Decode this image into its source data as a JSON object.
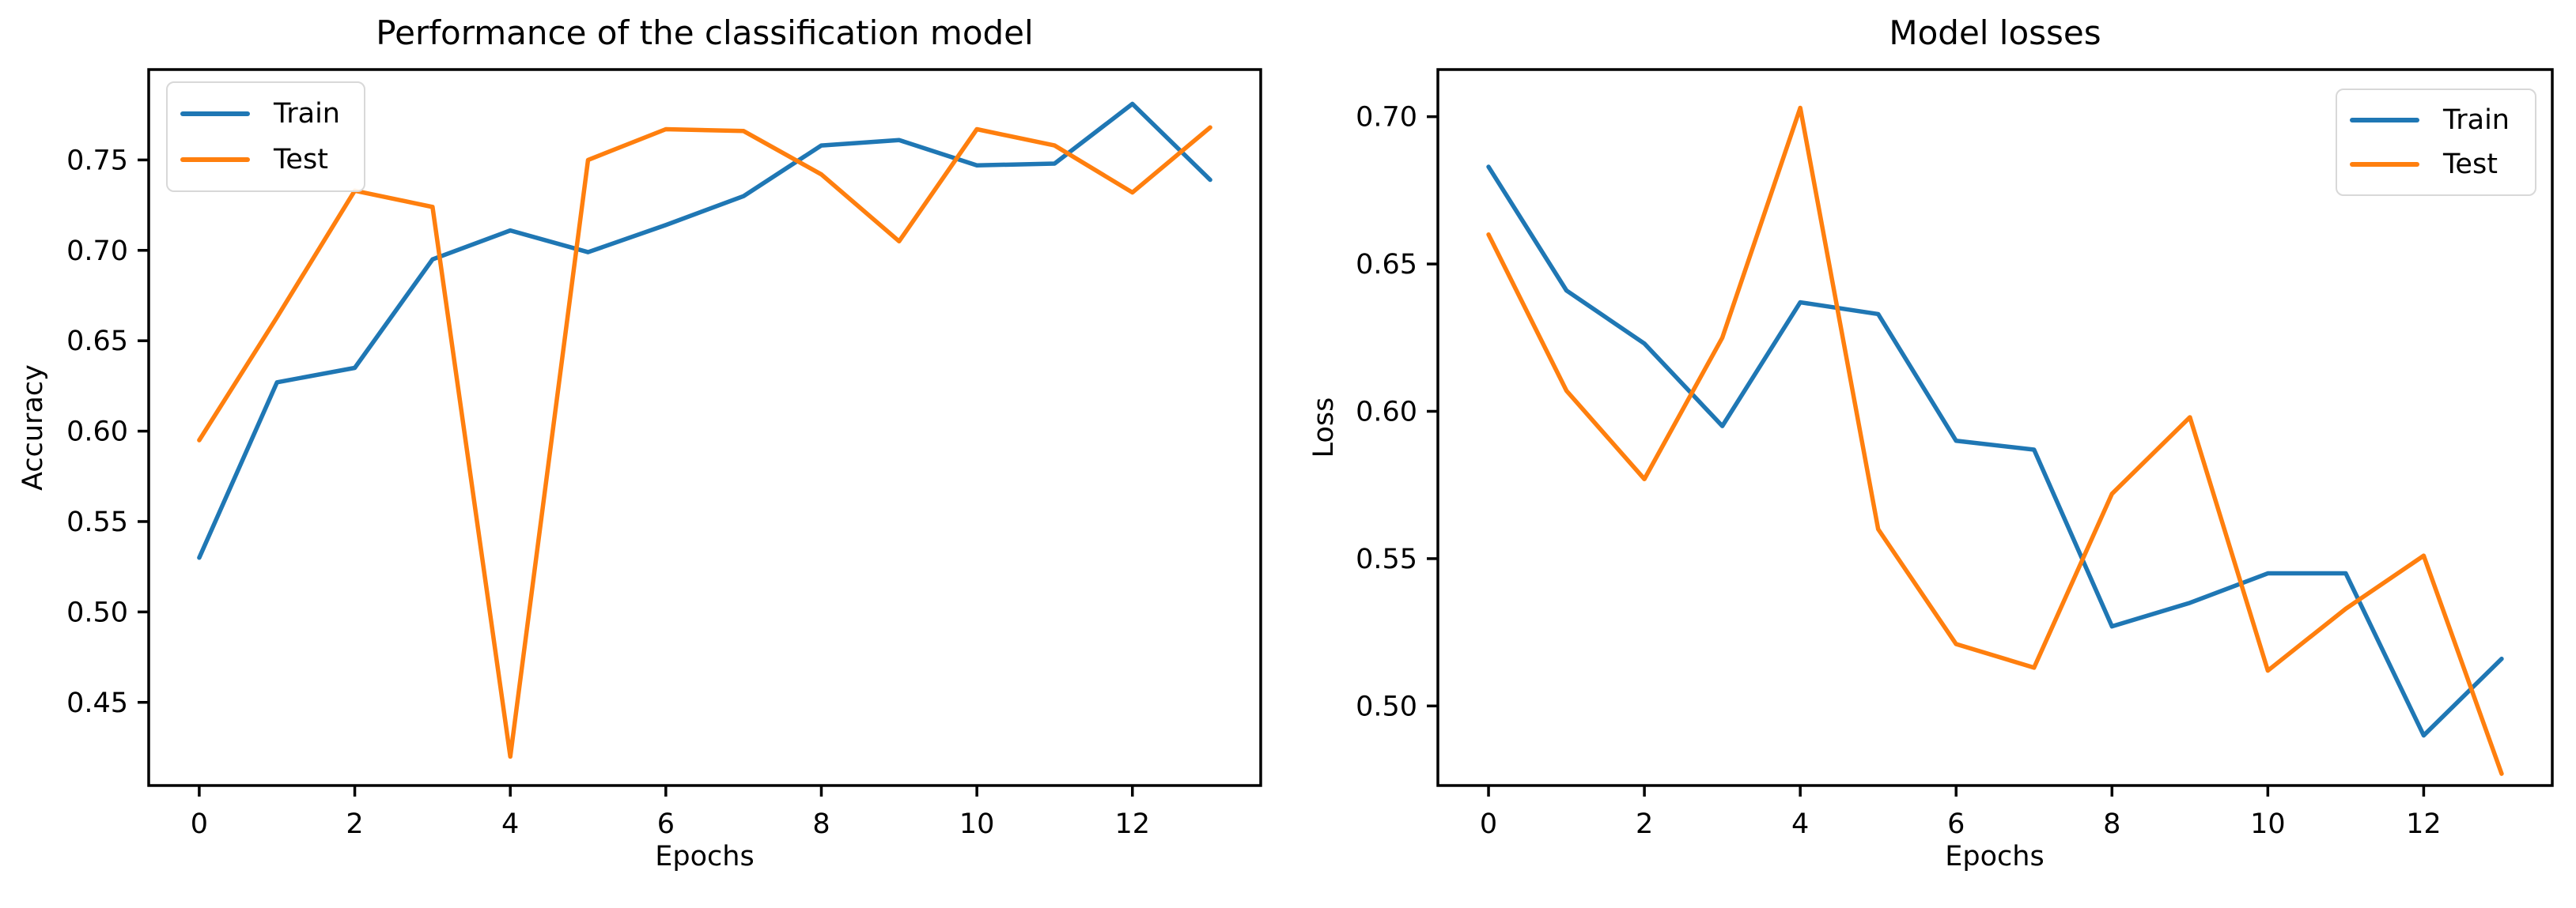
{
  "figure": {
    "background": "#ffffff"
  },
  "colors": {
    "train": "#1f77b4",
    "test": "#ff7f0e",
    "axis": "#000000",
    "text": "#000000",
    "legend_border": "#d8d8d8"
  },
  "chart_data": [
    {
      "type": "line",
      "title": "Performance of the classification model",
      "xlabel": "Epochs",
      "ylabel": "Accuracy",
      "x": [
        0,
        1,
        2,
        3,
        4,
        5,
        6,
        7,
        8,
        9,
        10,
        11,
        12,
        13
      ],
      "series": [
        {
          "name": "Train",
          "color_key": "train",
          "values": [
            0.53,
            0.627,
            0.635,
            0.695,
            0.711,
            0.699,
            0.714,
            0.73,
            0.758,
            0.761,
            0.747,
            0.748,
            0.781,
            0.739
          ]
        },
        {
          "name": "Test",
          "color_key": "test",
          "values": [
            0.595,
            0.663,
            0.733,
            0.724,
            0.42,
            0.75,
            0.767,
            0.766,
            0.742,
            0.705,
            0.767,
            0.758,
            0.732,
            0.768
          ]
        }
      ],
      "xlim": [
        -0.65,
        13.65
      ],
      "ylim": [
        0.404,
        0.8
      ],
      "xticks": [
        0,
        2,
        4,
        6,
        8,
        10,
        12
      ],
      "ytick_labels": [
        "0.45",
        "0.50",
        "0.55",
        "0.60",
        "0.65",
        "0.70",
        "0.75"
      ],
      "grid": false,
      "legend": {
        "position": "upper-left",
        "entries": [
          "Train",
          "Test"
        ]
      }
    },
    {
      "type": "line",
      "title": "Model losses",
      "xlabel": "Epochs",
      "ylabel": "Loss",
      "x": [
        0,
        1,
        2,
        3,
        4,
        5,
        6,
        7,
        8,
        9,
        10,
        11,
        12,
        13
      ],
      "series": [
        {
          "name": "Train",
          "color_key": "train",
          "values": [
            0.683,
            0.641,
            0.623,
            0.595,
            0.637,
            0.633,
            0.59,
            0.587,
            0.527,
            0.535,
            0.545,
            0.545,
            0.49,
            0.516
          ]
        },
        {
          "name": "Test",
          "color_key": "test",
          "values": [
            0.66,
            0.607,
            0.577,
            0.625,
            0.703,
            0.56,
            0.521,
            0.513,
            0.572,
            0.598,
            0.512,
            0.533,
            0.551,
            0.477
          ]
        }
      ],
      "xlim": [
        -0.65,
        13.65
      ],
      "ylim": [
        0.473,
        0.716
      ],
      "xticks": [
        0,
        2,
        4,
        6,
        8,
        10,
        12
      ],
      "ytick_labels": [
        "0.50",
        "0.55",
        "0.60",
        "0.65",
        "0.70"
      ],
      "grid": false,
      "legend": {
        "position": "upper-right",
        "entries": [
          "Train",
          "Test"
        ]
      }
    }
  ]
}
